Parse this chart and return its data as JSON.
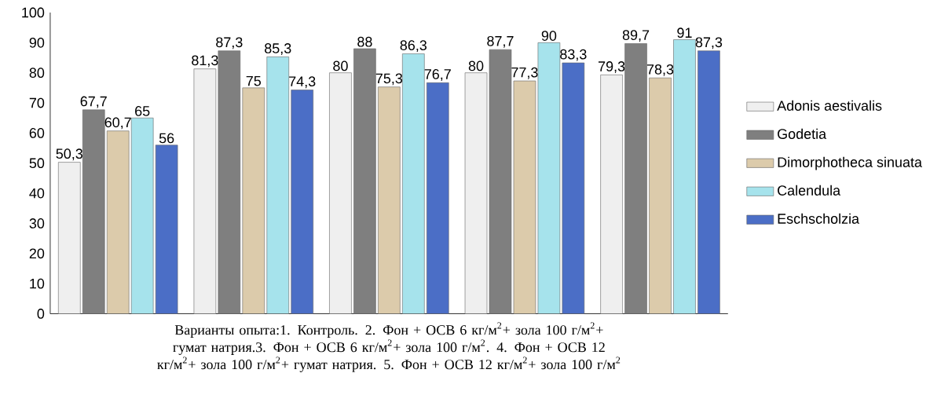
{
  "chart_data": {
    "type": "bar",
    "xlabel": "Варианты опыта:1. Контроль. 2. Фон + ОСВ 6 кг/м$^{2}$+ зола 100 г/м$^{2}$+ гумат натрия.3. Фон + ОСВ 6 кг/м$^{2}$+ зола 100 г/м$^{2}$. 4. Фон + ОСВ 12 кг/м$^{2}$+ зола 100 г/м$^{2}$+ гумат натрия. 5. Фон + ОСВ 12 кг/м$^{2}$+ зола 100 г/м$^{2}$",
    "categories": [
      null,
      null,
      null,
      null,
      null
    ],
    "series": [
      {
        "name": "Adonis aestivalis",
        "color": "#efefef",
        "values": [
          50.3,
          81.3,
          80,
          80,
          79.3
        ],
        "value_labels": [
          "50,3",
          "81,3",
          "80",
          "80",
          "79,3"
        ]
      },
      {
        "name": "Godetia",
        "color": "#7f7f7f",
        "values": [
          67.7,
          87.3,
          88,
          87.7,
          89.7
        ],
        "value_labels": [
          "67,7",
          "87,3",
          "88",
          "87,7",
          "89,7"
        ]
      },
      {
        "name": "Dimorphotheca sinuata",
        "color": "#dccbab",
        "values": [
          60.7,
          75,
          75.3,
          77.3,
          78.3
        ],
        "value_labels": [
          "60,7",
          "75",
          "75,3",
          "77,3",
          "78,3"
        ]
      },
      {
        "name": "Calendula",
        "color": "#a6e3ec",
        "values": [
          65,
          85.3,
          86.3,
          90,
          91
        ],
        "value_labels": [
          "65",
          "85,3",
          "86,3",
          "90",
          "91"
        ]
      },
      {
        "name": "Eschscholzia",
        "color": "#4b6ec6",
        "values": [
          56,
          74.3,
          76.7,
          83.3,
          87.3
        ],
        "value_labels": [
          "56",
          "74,3",
          "76,7",
          "83,3",
          "87,3"
        ]
      }
    ],
    "ylim": [
      0,
      100
    ],
    "yticks": [
      0,
      10,
      20,
      30,
      40,
      50,
      60,
      70,
      80,
      90,
      100
    ],
    "grid": false,
    "legend": "right"
  }
}
